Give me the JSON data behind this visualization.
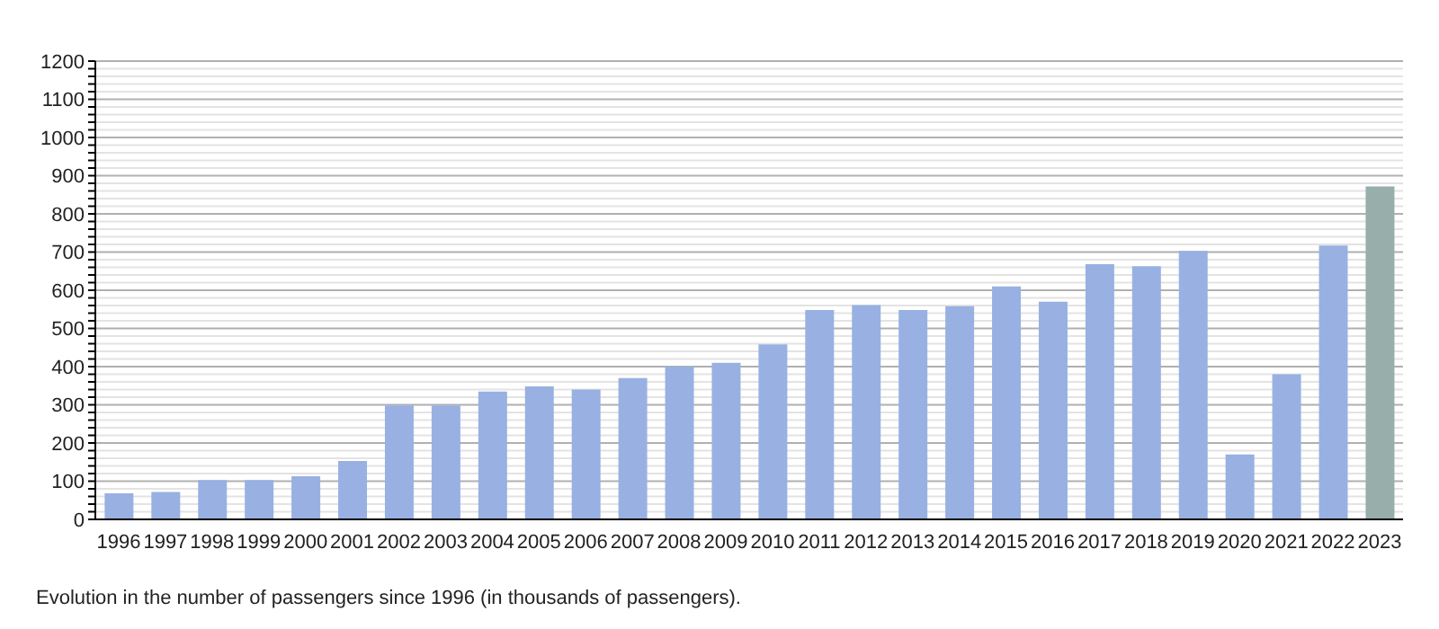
{
  "chart_data": {
    "type": "bar",
    "categories": [
      "1996",
      "1997",
      "1998",
      "1999",
      "2000",
      "2001",
      "2002",
      "2003",
      "2004",
      "2005",
      "2006",
      "2007",
      "2008",
      "2009",
      "2010",
      "2011",
      "2012",
      "2013",
      "2014",
      "2015",
      "2016",
      "2017",
      "2018",
      "2019",
      "2020",
      "2021",
      "2022",
      "2023"
    ],
    "values": [
      68,
      72,
      103,
      103,
      113,
      153,
      298,
      298,
      335,
      348,
      340,
      370,
      400,
      410,
      458,
      548,
      561,
      548,
      558,
      610,
      570,
      668,
      663,
      703,
      170,
      380,
      717,
      872
    ],
    "colors": [
      "#98b1e2",
      "#98b1e2",
      "#98b1e2",
      "#98b1e2",
      "#98b1e2",
      "#98b1e2",
      "#98b1e2",
      "#98b1e2",
      "#98b1e2",
      "#98b1e2",
      "#98b1e2",
      "#98b1e2",
      "#98b1e2",
      "#98b1e2",
      "#98b1e2",
      "#98b1e2",
      "#98b1e2",
      "#98b1e2",
      "#98b1e2",
      "#98b1e2",
      "#98b1e2",
      "#98b1e2",
      "#98b1e2",
      "#98b1e2",
      "#98b1e2",
      "#98b1e2",
      "#98b1e2",
      "#98aeab"
    ],
    "ylim": [
      0,
      1200
    ],
    "yticks": [
      0,
      {
        "value": 20,
        "label": null
      },
      {
        "value": 40,
        "label": null
      },
      {
        "value": 60,
        "label": null
      },
      {
        "value": 80,
        "label": null
      },
      100,
      {
        "value": 120,
        "label": null
      },
      {
        "value": 140,
        "label": null
      },
      {
        "value": 160,
        "label": null
      },
      {
        "value": 180,
        "label": null
      },
      200,
      {
        "value": 220,
        "label": null
      },
      {
        "value": 240,
        "label": null
      },
      {
        "value": 260,
        "label": null
      },
      {
        "value": 280,
        "label": null
      },
      300,
      {
        "value": 320,
        "label": null
      },
      {
        "value": 340,
        "label": null
      },
      {
        "value": 360,
        "label": null
      },
      {
        "value": 380,
        "label": null
      },
      400,
      {
        "value": 420,
        "label": null
      },
      {
        "value": 440,
        "label": null
      },
      {
        "value": 460,
        "label": null
      },
      {
        "value": 480,
        "label": null
      },
      500,
      {
        "value": 520,
        "label": null
      },
      {
        "value": 540,
        "label": null
      },
      {
        "value": 560,
        "label": null
      },
      {
        "value": 580,
        "label": null
      },
      600,
      {
        "value": 620,
        "label": null
      },
      {
        "value": 640,
        "label": null
      },
      {
        "value": 660,
        "label": null
      },
      {
        "value": 680,
        "label": null
      },
      700,
      {
        "value": 720,
        "label": null
      },
      {
        "value": 740,
        "label": null
      },
      {
        "value": 760,
        "label": null
      },
      {
        "value": 780,
        "label": null
      },
      800,
      {
        "value": 820,
        "label": null
      },
      {
        "value": 840,
        "label": null
      },
      {
        "value": 860,
        "label": null
      },
      {
        "value": 880,
        "label": null
      },
      900,
      {
        "value": 920,
        "label": null
      },
      {
        "value": 940,
        "label": null
      },
      {
        "value": 960,
        "label": null
      },
      {
        "value": 980,
        "label": null
      },
      1000,
      {
        "value": 1020,
        "label": null
      },
      {
        "value": 1040,
        "label": null
      },
      {
        "value": 1060,
        "label": null
      },
      {
        "value": 1080,
        "label": null
      },
      1100,
      {
        "value": 1120,
        "label": null
      },
      {
        "value": 1140,
        "label": null
      },
      {
        "value": 1160,
        "label": null
      },
      {
        "value": 1180,
        "label": null
      },
      1200
    ],
    "grid": "y",
    "annotations": [
      "Evolution in the number of passengers since 1996 (in thousands of passengers)."
    ]
  }
}
